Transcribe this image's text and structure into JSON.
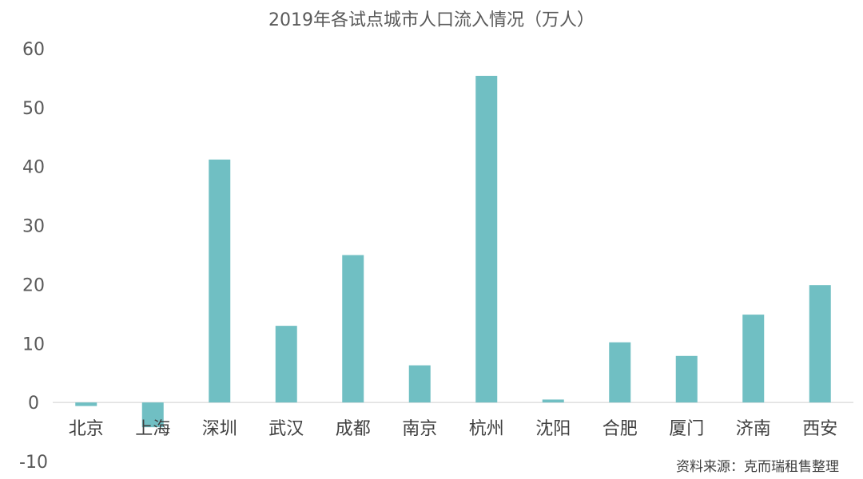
{
  "chart_data": {
    "type": "bar",
    "title": "2019年各试点城市人口流入情况（万人）",
    "xlabel": "",
    "ylabel": "",
    "categories": [
      "北京",
      "上海",
      "深圳",
      "武汉",
      "成都",
      "南京",
      "杭州",
      "沈阳",
      "合肥",
      "厦门",
      "济南",
      "西安"
    ],
    "values": [
      -0.6,
      -4.2,
      41.2,
      13.0,
      25.0,
      6.3,
      55.4,
      0.5,
      10.2,
      7.9,
      14.9,
      19.9
    ],
    "ylim": [
      -10,
      60
    ],
    "yticks": [
      -10,
      0,
      10,
      20,
      30,
      40,
      50,
      60
    ],
    "grid": false,
    "legend": "none",
    "bar_color": "#70bfc3",
    "source_note": "资料来源：克而瑞租售整理"
  }
}
